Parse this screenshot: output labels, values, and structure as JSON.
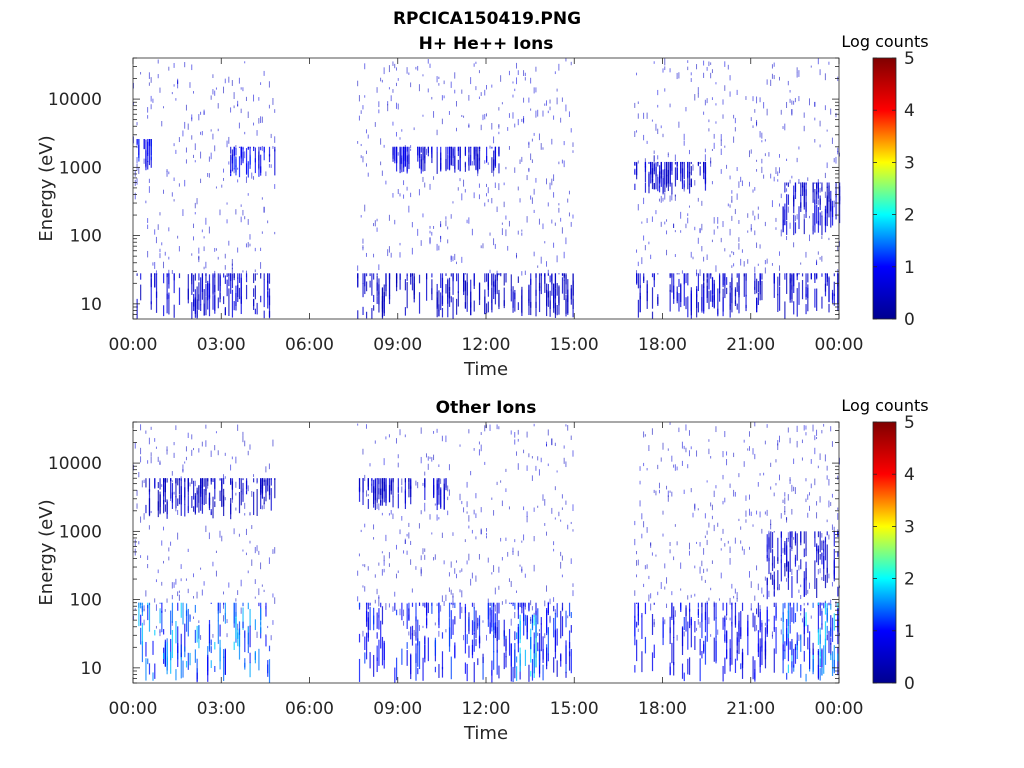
{
  "figure": {
    "title": "RPCICA150419.PNG"
  },
  "colormap": {
    "name": "jet",
    "stops": [
      "#00008f",
      "#0000ff",
      "#00ffff",
      "#ffff00",
      "#ff0000",
      "#800000"
    ]
  },
  "chart_data": [
    {
      "type": "heatmap",
      "title": "H+ He++ Ions",
      "xlabel": "Time",
      "ylabel": "Energy (eV)",
      "x_ticks": [
        "00:00",
        "03:00",
        "06:00",
        "09:00",
        "12:00",
        "15:00",
        "18:00",
        "21:00",
        "00:00"
      ],
      "x_range_hours": [
        0,
        24
      ],
      "y_scale": "log",
      "y_ticks": [
        "10",
        "100",
        "1000",
        "10000"
      ],
      "y_range": [
        6,
        40000
      ],
      "colorbar": {
        "label": "Log counts",
        "ticks": [
          "0",
          "1",
          "2",
          "3",
          "4",
          "5"
        ],
        "range": [
          0,
          5
        ]
      },
      "data_gaps_hours": [
        [
          4.8,
          7.6
        ],
        [
          15.0,
          17.0
        ]
      ],
      "features": [
        {
          "t_start": 0.0,
          "t_end": 4.8,
          "e_min": 6,
          "e_max": 28,
          "log_counts": 0.6
        },
        {
          "t_start": 7.6,
          "t_end": 15.0,
          "e_min": 6,
          "e_max": 28,
          "log_counts": 0.5
        },
        {
          "t_start": 17.0,
          "t_end": 24.0,
          "e_min": 6,
          "e_max": 28,
          "log_counts": 0.6
        },
        {
          "t_start": 0.0,
          "t_end": 0.8,
          "e_min": 900,
          "e_max": 2600,
          "log_counts": 0.9
        },
        {
          "t_start": 3.3,
          "t_end": 4.8,
          "e_min": 700,
          "e_max": 2000,
          "log_counts": 0.9
        },
        {
          "t_start": 8.8,
          "t_end": 12.5,
          "e_min": 800,
          "e_max": 2000,
          "log_counts": 0.7
        },
        {
          "t_start": 17.0,
          "t_end": 19.5,
          "e_min": 400,
          "e_max": 1200,
          "log_counts": 0.6
        },
        {
          "t_start": 22.0,
          "t_end": 24.0,
          "e_min": 100,
          "e_max": 600,
          "log_counts": 0.6
        }
      ]
    },
    {
      "type": "heatmap",
      "title": "Other Ions",
      "xlabel": "Time",
      "ylabel": "Energy (eV)",
      "x_ticks": [
        "00:00",
        "03:00",
        "06:00",
        "09:00",
        "12:00",
        "15:00",
        "18:00",
        "21:00",
        "00:00"
      ],
      "x_range_hours": [
        0,
        24
      ],
      "y_scale": "log",
      "y_ticks": [
        "10",
        "100",
        "1000",
        "10000"
      ],
      "y_range": [
        6,
        40000
      ],
      "colorbar": {
        "label": "Log counts",
        "ticks": [
          "0",
          "1",
          "2",
          "3",
          "4",
          "5"
        ],
        "range": [
          0,
          5
        ]
      },
      "data_gaps_hours": [
        [
          4.8,
          7.6
        ],
        [
          15.0,
          17.0
        ]
      ],
      "features": [
        {
          "t_start": 0.0,
          "t_end": 4.8,
          "e_min": 6,
          "e_max": 90,
          "log_counts": 1.4
        },
        {
          "t_start": 7.6,
          "t_end": 15.0,
          "e_min": 6,
          "e_max": 90,
          "log_counts": 1.0
        },
        {
          "t_start": 13.0,
          "t_end": 13.8,
          "e_min": 6,
          "e_max": 60,
          "log_counts": 1.7
        },
        {
          "t_start": 17.0,
          "t_end": 24.0,
          "e_min": 6,
          "e_max": 90,
          "log_counts": 0.9
        },
        {
          "t_start": 22.0,
          "t_end": 24.0,
          "e_min": 6,
          "e_max": 90,
          "log_counts": 1.5
        },
        {
          "t_start": 0.0,
          "t_end": 4.8,
          "e_min": 1500,
          "e_max": 6000,
          "log_counts": 0.5
        },
        {
          "t_start": 7.6,
          "t_end": 10.8,
          "e_min": 2000,
          "e_max": 6000,
          "log_counts": 0.6
        },
        {
          "t_start": 21.5,
          "t_end": 24.0,
          "e_min": 100,
          "e_max": 1000,
          "log_counts": 0.6
        }
      ]
    }
  ]
}
